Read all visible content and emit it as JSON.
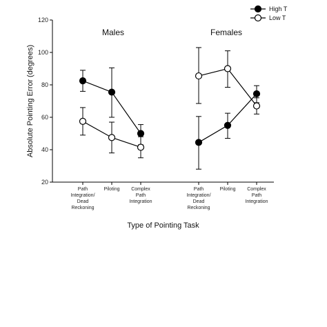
{
  "chart_data": {
    "type": "line",
    "ylabel": "Absolute Pointing Error (degrees)",
    "xlabel": "Type of Pointing Task",
    "ylim": [
      20,
      120
    ],
    "yticks": [
      20,
      40,
      60,
      80,
      100,
      120
    ],
    "panels": [
      {
        "title": "Males",
        "categories": [
          [
            "Path",
            "Integration/",
            "Dead",
            "Reckoning"
          ],
          [
            "Piloting"
          ],
          [
            "Complex",
            "Path",
            "Integration"
          ]
        ],
        "series": [
          {
            "name": "High T",
            "marker": "filled",
            "values": [
              82.5,
              75.5,
              50
            ],
            "err_low": [
              76,
              60,
              43
            ],
            "err_high": [
              89,
              90.5,
              55.5
            ]
          },
          {
            "name": "Low T",
            "marker": "open",
            "values": [
              57.5,
              47.5,
              41.5
            ],
            "err_low": [
              49,
              38,
              35
            ],
            "err_high": [
              66,
              57,
              48
            ]
          }
        ]
      },
      {
        "title": "Females",
        "categories": [
          [
            "Path",
            "Integration/",
            "Dead",
            "Reckoning"
          ],
          [
            "Piloting"
          ],
          [
            "Complex",
            "Path",
            "Integration"
          ]
        ],
        "series": [
          {
            "name": "High T",
            "marker": "filled",
            "values": [
              44.5,
              55,
              74.5
            ],
            "err_low": [
              28,
              47,
              69
            ],
            "err_high": [
              60.5,
              62.5,
              79.5
            ]
          },
          {
            "name": "Low T",
            "marker": "open",
            "values": [
              85.5,
              90,
              67
            ],
            "err_low": [
              68.5,
              78.5,
              62
            ],
            "err_high": [
              103,
              101,
              72
            ]
          }
        ]
      }
    ],
    "legend": [
      {
        "name": "High T",
        "marker": "filled"
      },
      {
        "name": "Low T",
        "marker": "open"
      }
    ],
    "legend_position": "top-right",
    "grid": false
  }
}
